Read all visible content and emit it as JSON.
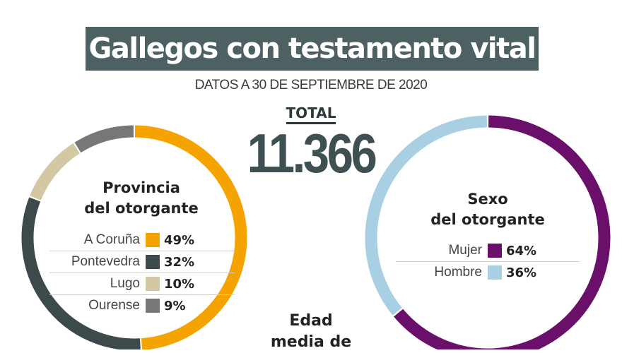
{
  "header": {
    "title": "Gallegos con testamento vital",
    "subtitle": "DATOS A 30 DE SEPTIEMBRE DE 2020",
    "total_label": "TOTAL",
    "total_value": "11.366"
  },
  "bottom_label": {
    "line1": "Edad",
    "line2": "media de"
  },
  "chart_data": [
    {
      "type": "pie",
      "variant": "donut",
      "title_line1": "Provincia",
      "title_line2": "del otorgante",
      "categories": [
        "A Coruña",
        "Pontevedra",
        "Lugo",
        "Ourense"
      ],
      "values": [
        49,
        32,
        10,
        9
      ],
      "value_labels": [
        "49%",
        "32%",
        "10%",
        "9%"
      ],
      "colors": [
        "#f5a300",
        "#3c4a4b",
        "#d4c8a4",
        "#777777"
      ]
    },
    {
      "type": "pie",
      "variant": "donut",
      "title_line1": "Sexo",
      "title_line2": "del otorgante",
      "categories": [
        "Mujer",
        "Hombre"
      ],
      "values": [
        64,
        36
      ],
      "value_labels": [
        "64%",
        "36%"
      ],
      "colors": [
        "#6a0f6a",
        "#a8d0e2"
      ]
    }
  ]
}
